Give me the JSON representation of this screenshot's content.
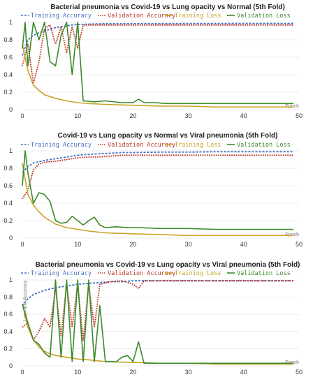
{
  "chart_data": [
    {
      "type": "line",
      "title": "Bacterial pneumonia vs Covid-19 vs Lung opacity vs Normal (5th Fold)",
      "xlabel": "Epoch",
      "ylabel": "",
      "xlim": [
        0,
        50
      ],
      "ylim": [
        0,
        1
      ],
      "xticks": [
        0,
        10,
        20,
        30,
        40,
        50
      ],
      "yticks": [
        0,
        0.2,
        0.4,
        0.6,
        0.8,
        1
      ],
      "legend": "top",
      "series": [
        {
          "name": "Training Accuracy",
          "color": "#4472c4",
          "dash": "dashed",
          "x": [
            0,
            1,
            2,
            3,
            4,
            5,
            6,
            7,
            8,
            9,
            10,
            12,
            15,
            20,
            25,
            30,
            35,
            40,
            45,
            49
          ],
          "y": [
            0.62,
            0.8,
            0.85,
            0.88,
            0.9,
            0.92,
            0.94,
            0.95,
            0.96,
            0.97,
            0.975,
            0.98,
            0.985,
            0.985,
            0.985,
            0.986,
            0.986,
            0.987,
            0.987,
            0.987
          ]
        },
        {
          "name": "Validation Accuracy",
          "color": "#c0392b",
          "dash": "dotted",
          "x": [
            0,
            1,
            2,
            3,
            4,
            5,
            6,
            7,
            8,
            9,
            10,
            11,
            15,
            20,
            25,
            30,
            35,
            40,
            45,
            49
          ],
          "y": [
            0.5,
            0.75,
            0.3,
            0.55,
            0.93,
            0.97,
            0.75,
            0.95,
            0.65,
            0.95,
            0.7,
            0.97,
            0.97,
            0.97,
            0.97,
            0.97,
            0.97,
            0.97,
            0.97,
            0.97
          ]
        },
        {
          "name": "Training Loss",
          "color": "#c9a227",
          "dash": "solid",
          "x": [
            0,
            1,
            2,
            3,
            4,
            5,
            6,
            8,
            10,
            12,
            15,
            20,
            25,
            30,
            35,
            40,
            45,
            49
          ],
          "y": [
            0.75,
            0.45,
            0.28,
            0.22,
            0.17,
            0.15,
            0.13,
            0.1,
            0.08,
            0.07,
            0.06,
            0.05,
            0.04,
            0.04,
            0.03,
            0.03,
            0.03,
            0.03
          ]
        },
        {
          "name": "Validation Loss",
          "color": "#3a8a2a",
          "dash": "solid",
          "x": [
            0,
            0.5,
            1,
            2,
            3,
            4,
            5,
            6,
            7,
            8,
            9,
            10,
            11,
            13,
            15,
            18,
            20,
            21,
            22,
            24,
            26,
            30,
            35,
            40,
            45,
            49
          ],
          "y": [
            0.7,
            1.0,
            0.5,
            1.0,
            0.8,
            1.0,
            0.55,
            0.5,
            0.85,
            1.0,
            0.4,
            1.0,
            0.1,
            0.09,
            0.1,
            0.08,
            0.08,
            0.12,
            0.08,
            0.08,
            0.07,
            0.07,
            0.07,
            0.07,
            0.07,
            0.07
          ]
        }
      ]
    },
    {
      "type": "line",
      "title": "Covid-19 vs Lung opacity vs Normal vs Viral pneumonia (5th Fold)",
      "xlabel": "Epoch",
      "ylabel": "",
      "xlim": [
        0,
        50
      ],
      "ylim": [
        0,
        1
      ],
      "xticks": [
        0,
        10,
        20,
        30,
        40,
        50
      ],
      "yticks": [
        0,
        0.2,
        0.4,
        0.6,
        0.8,
        1
      ],
      "legend": "top",
      "series": [
        {
          "name": "Training Accuracy",
          "color": "#4472c4",
          "dash": "dashed",
          "x": [
            0,
            1,
            2,
            4,
            6,
            8,
            10,
            12,
            15,
            18,
            20,
            25,
            30,
            35,
            40,
            45,
            49
          ],
          "y": [
            0.75,
            0.82,
            0.86,
            0.89,
            0.91,
            0.93,
            0.95,
            0.96,
            0.97,
            0.98,
            0.98,
            0.985,
            0.985,
            0.99,
            0.99,
            0.99,
            0.99
          ]
        },
        {
          "name": "Validation Accuracy",
          "color": "#c0392b",
          "dash": "dotted",
          "x": [
            0,
            1,
            2,
            3,
            4,
            6,
            8,
            10,
            12,
            14,
            16,
            18,
            20,
            25,
            30,
            35,
            40,
            45,
            49
          ],
          "y": [
            0.45,
            0.55,
            0.78,
            0.85,
            0.87,
            0.88,
            0.9,
            0.92,
            0.93,
            0.93,
            0.94,
            0.95,
            0.95,
            0.95,
            0.95,
            0.95,
            0.95,
            0.95,
            0.95
          ]
        },
        {
          "name": "Training Loss",
          "color": "#c9a227",
          "dash": "solid",
          "x": [
            0,
            1,
            2,
            3,
            4,
            5,
            6,
            8,
            10,
            12,
            15,
            20,
            25,
            30,
            35,
            40,
            45,
            49
          ],
          "y": [
            0.86,
            0.5,
            0.38,
            0.3,
            0.24,
            0.2,
            0.16,
            0.12,
            0.1,
            0.08,
            0.06,
            0.05,
            0.04,
            0.03,
            0.03,
            0.03,
            0.03,
            0.03
          ]
        },
        {
          "name": "Validation Loss",
          "color": "#3a8a2a",
          "dash": "solid",
          "x": [
            0,
            0.5,
            1,
            2,
            3,
            4,
            5,
            6,
            7,
            8,
            9,
            10,
            11,
            12,
            13,
            14,
            15,
            17,
            19,
            21,
            25,
            30,
            35,
            40,
            45,
            49
          ],
          "y": [
            0.6,
            1.0,
            0.75,
            0.4,
            0.52,
            0.5,
            0.42,
            0.2,
            0.17,
            0.18,
            0.25,
            0.2,
            0.15,
            0.2,
            0.24,
            0.15,
            0.12,
            0.13,
            0.12,
            0.12,
            0.11,
            0.11,
            0.1,
            0.1,
            0.1,
            0.1
          ]
        }
      ]
    },
    {
      "type": "line",
      "title": "Bacterial pneumonia vs Covid-19 vs Lung opacity vs Viral pneumonia (5th Fold)",
      "xlabel": "Epoch",
      "ylabel": "Loss and Accuracy",
      "xlim": [
        0,
        50
      ],
      "ylim": [
        0,
        1
      ],
      "xticks": [
        0,
        10,
        20,
        30,
        40,
        50
      ],
      "yticks": [
        0,
        0.2,
        0.4,
        0.6,
        0.8,
        1
      ],
      "legend": "top",
      "series": [
        {
          "name": "Training Accuracy",
          "color": "#4472c4",
          "dash": "dashed",
          "x": [
            0,
            1,
            2,
            4,
            6,
            8,
            10,
            12,
            14,
            16,
            18,
            20,
            25,
            30,
            35,
            40,
            45,
            49
          ],
          "y": [
            0.7,
            0.78,
            0.83,
            0.88,
            0.91,
            0.93,
            0.95,
            0.96,
            0.97,
            0.98,
            0.98,
            0.99,
            0.99,
            0.99,
            0.99,
            0.99,
            0.99,
            0.99
          ]
        },
        {
          "name": "Validation Accuracy",
          "color": "#c0392b",
          "dash": "dotted",
          "x": [
            0,
            1,
            2,
            3,
            4,
            5,
            6,
            7,
            8,
            9,
            10,
            11,
            12,
            13,
            14,
            16,
            18,
            20,
            21,
            22,
            25,
            30,
            35,
            40,
            45,
            49
          ],
          "y": [
            0.45,
            0.5,
            0.3,
            0.4,
            0.55,
            0.45,
            0.9,
            0.35,
            0.95,
            0.45,
            0.95,
            0.3,
            0.95,
            0.45,
            0.95,
            0.98,
            0.99,
            0.95,
            0.9,
            0.99,
            0.99,
            0.99,
            0.99,
            0.99,
            0.99,
            0.99
          ]
        },
        {
          "name": "Training Loss",
          "color": "#c9a227",
          "dash": "solid",
          "x": [
            0,
            1,
            2,
            3,
            4,
            5,
            6,
            8,
            10,
            12,
            15,
            20,
            25,
            30,
            35,
            40,
            45,
            49
          ],
          "y": [
            0.72,
            0.45,
            0.3,
            0.22,
            0.17,
            0.14,
            0.12,
            0.1,
            0.08,
            0.07,
            0.05,
            0.04,
            0.03,
            0.03,
            0.02,
            0.02,
            0.02,
            0.02
          ]
        },
        {
          "name": "Validation Loss",
          "color": "#3a8a2a",
          "dash": "solid",
          "x": [
            0,
            1,
            2,
            3,
            4,
            5,
            6,
            7,
            8,
            9,
            10,
            11,
            12,
            13,
            14,
            15,
            16,
            17,
            18,
            19,
            20,
            21,
            22,
            24,
            26,
            30,
            35,
            40,
            45,
            49
          ],
          "y": [
            0.72,
            0.5,
            0.3,
            0.25,
            0.15,
            0.1,
            1.0,
            0.1,
            1.0,
            0.05,
            1.0,
            0.05,
            1.0,
            0.05,
            0.7,
            0.05,
            0.05,
            0.05,
            0.1,
            0.12,
            0.05,
            0.28,
            0.03,
            0.03,
            0.03,
            0.03,
            0.03,
            0.03,
            0.03,
            0.03
          ]
        }
      ]
    }
  ]
}
